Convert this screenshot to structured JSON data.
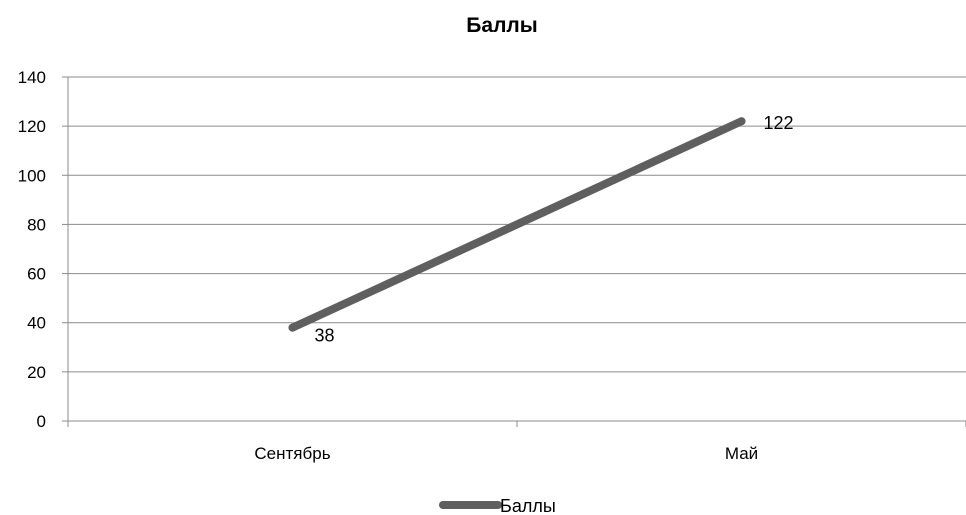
{
  "chart_data": {
    "type": "line",
    "title": "Баллы",
    "xlabel": "",
    "ylabel": "",
    "categories": [
      "Сентябрь",
      "Май"
    ],
    "series": [
      {
        "name": "Баллы",
        "values": [
          38,
          122
        ],
        "color": "#5f5f5f"
      }
    ],
    "data_labels": [
      "38",
      "122"
    ],
    "ylim": [
      0,
      140
    ],
    "yticks": [
      0,
      20,
      40,
      60,
      80,
      100,
      120,
      140
    ],
    "grid": true,
    "legend_position": "bottom"
  },
  "colors": {
    "series": "#5f5f5f",
    "grid": "#8c8c8c",
    "axis": "#8c8c8c",
    "text": "#000000"
  }
}
